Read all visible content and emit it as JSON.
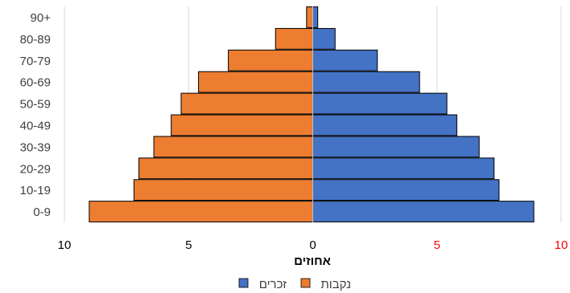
{
  "chart_data": {
    "type": "bar",
    "orientation": "horizontal",
    "layout": "population-pyramid",
    "categories": [
      "0-9",
      "10-19",
      "20-29",
      "30-39",
      "40-49",
      "50-59",
      "60-69",
      "70-79",
      "80-89",
      "90+"
    ],
    "series": [
      {
        "name": "זכרים",
        "side": "right",
        "color": "#4472C4",
        "values": [
          8.9,
          7.5,
          7.3,
          6.7,
          5.8,
          5.4,
          4.3,
          2.6,
          0.9,
          0.2
        ]
      },
      {
        "name": "נקבות",
        "side": "left",
        "color": "#ED7D31",
        "values": [
          9.0,
          7.2,
          7.0,
          6.4,
          5.7,
          5.3,
          4.6,
          3.4,
          1.5,
          0.25
        ]
      }
    ],
    "x_ticks": [
      {
        "label": "10",
        "color": "#000000"
      },
      {
        "label": "5",
        "color": "#000000"
      },
      {
        "label": "0",
        "color": "#000000"
      },
      {
        "label": "5",
        "color": "#FF0000"
      },
      {
        "label": "10",
        "color": "#FF0000"
      }
    ],
    "x_tick_values": [
      -10,
      -5,
      0,
      5,
      10
    ],
    "xlim": [
      -10,
      10
    ],
    "xlabel": "אחוזים",
    "ylabel": "",
    "title": "",
    "grid": "vertical",
    "legend_position": "bottom",
    "legend_order": [
      "זכרים",
      "נקבות"
    ]
  }
}
